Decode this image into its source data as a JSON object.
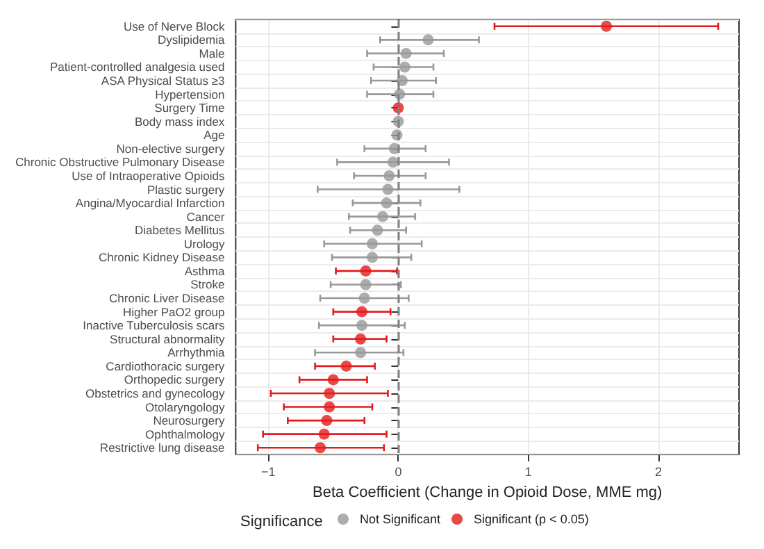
{
  "chart_data": {
    "type": "scatter",
    "orientation": "horizontal",
    "xlabel": "Beta Coefficient (Change in Opioid Dose, MME mg)",
    "legend_title": "Significance",
    "legend": "bottom",
    "grid": true,
    "marker": "circle",
    "categories": [
      "Use of Nerve Block",
      "Dyslipidemia",
      "Male",
      "Patient-controlled analgesia used",
      "ASA Physical Status ≥3",
      "Hypertension",
      "Surgery Time",
      "Body mass index",
      "Age",
      "Non-elective surgery",
      "Chronic Obstructive Pulmonary Disease",
      "Use of Intraoperative Opioids",
      "Plastic surgery",
      "Angina/Myocardial Infarction",
      "Cancer",
      "Diabetes Mellitus",
      "Urology",
      "Chronic Kidney Disease",
      "Asthma",
      "Stroke",
      "Chronic Liver Disease",
      "Higher PaO2 group",
      "Inactive Tuberculosis scars",
      "Structural abnormality",
      "Arrhythmia",
      "Cardiothoracic surgery",
      "Orthopedic surgery",
      "Obstetrics and gynecology",
      "Otolaryngology",
      "Neurosurgery",
      "Ophthalmology",
      "Restrictive lung disease"
    ],
    "xlim": [
      -1.25,
      2.62
    ],
    "xticks": [
      -1,
      0,
      1,
      2
    ],
    "series": [
      {
        "name": "Not Significant",
        "color": "#999999",
        "values": [
          null,
          0.23,
          0.06,
          0.05,
          0.03,
          0.01,
          null,
          0,
          -0.01,
          -0.03,
          -0.04,
          -0.07,
          -0.08,
          -0.09,
          -0.12,
          -0.16,
          -0.2,
          -0.2,
          null,
          -0.25,
          -0.26,
          null,
          -0.28,
          null,
          -0.29,
          null,
          null,
          null,
          null,
          null,
          null,
          null
        ],
        "errors": [
          null,
          [
            -0.14,
            0.62
          ],
          [
            -0.24,
            0.35
          ],
          [
            -0.19,
            0.27
          ],
          [
            -0.21,
            0.29
          ],
          [
            -0.24,
            0.27
          ],
          null,
          null,
          null,
          [
            -0.26,
            0.21
          ],
          [
            -0.47,
            0.39
          ],
          [
            -0.34,
            0.21
          ],
          [
            -0.62,
            0.47
          ],
          [
            -0.35,
            0.17
          ],
          [
            -0.38,
            0.13
          ],
          [
            -0.37,
            0.06
          ],
          [
            -0.57,
            0.18
          ],
          [
            -0.51,
            0.1
          ],
          null,
          [
            -0.52,
            0.02
          ],
          [
            -0.6,
            0.08
          ],
          null,
          [
            -0.61,
            0.05
          ],
          null,
          [
            -0.64,
            0.04
          ],
          null,
          null,
          null,
          null,
          null,
          null,
          null
        ]
      },
      {
        "name": "Significant (p < 0.05)",
        "color": "#e41a1c",
        "values": [
          1.6,
          null,
          null,
          null,
          null,
          null,
          0,
          null,
          null,
          null,
          null,
          null,
          null,
          null,
          null,
          null,
          null,
          null,
          -0.25,
          null,
          null,
          -0.28,
          null,
          -0.29,
          null,
          -0.4,
          -0.5,
          -0.53,
          -0.53,
          -0.55,
          -0.57,
          -0.6
        ],
        "errors": [
          [
            0.74,
            2.46
          ],
          null,
          null,
          null,
          null,
          null,
          null,
          null,
          null,
          null,
          null,
          null,
          null,
          null,
          null,
          null,
          null,
          null,
          [
            -0.48,
            -0.01
          ],
          null,
          null,
          [
            -0.5,
            -0.06
          ],
          null,
          [
            -0.5,
            -0.09
          ],
          null,
          [
            -0.64,
            -0.18
          ],
          [
            -0.76,
            -0.24
          ],
          [
            -0.98,
            -0.08
          ],
          [
            -0.88,
            -0.2
          ],
          [
            -0.85,
            -0.26
          ],
          [
            -1.04,
            -0.09
          ],
          [
            -1.08,
            -0.11
          ]
        ]
      }
    ],
    "ref_lines": [
      {
        "axis": "x",
        "value": 0,
        "color": "#808080",
        "line_style": "dashed"
      }
    ]
  }
}
